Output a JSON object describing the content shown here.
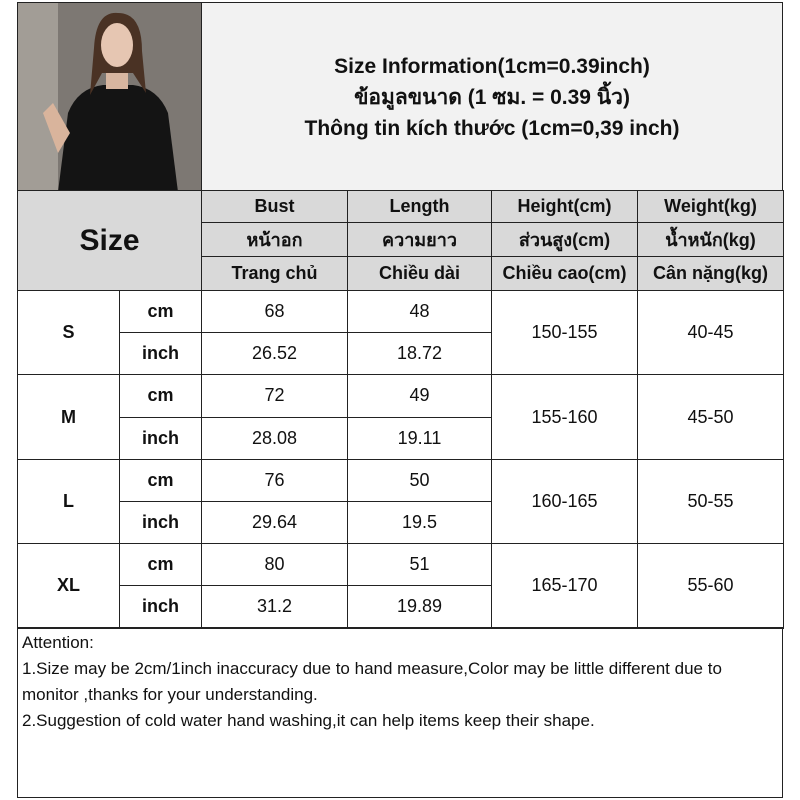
{
  "photo_alt": "model photo",
  "info": {
    "line1": "Size Information(1cm=0.39inch)",
    "line2": "ข้อมูลขนาด (1 ซม. = 0.39 นิ้ว)",
    "line3": "Thông tin kích thước (1cm=0,39 inch)"
  },
  "size_label": "Size",
  "columns": [
    {
      "en": "Bust",
      "th": "หน้าอก",
      "vi": "Trang chủ"
    },
    {
      "en": "Length",
      "th": "ความยาว",
      "vi": "Chiều dài"
    },
    {
      "en": "Height(cm)",
      "th": "ส่วนสูง(cm)",
      "vi": "Chiều cao(cm)"
    },
    {
      "en": "Weight(kg)",
      "th": "น้ำหนัก(kg)",
      "vi": "Cân nặng(kg)"
    }
  ],
  "units": {
    "cm": "cm",
    "inch": "inch"
  },
  "rows": [
    {
      "size": "S",
      "cm": [
        "68",
        "48"
      ],
      "inch": [
        "26.52",
        "18.72"
      ],
      "height": "150-155",
      "weight": "40-45"
    },
    {
      "size": "M",
      "cm": [
        "72",
        "49"
      ],
      "inch": [
        "28.08",
        "19.11"
      ],
      "height": "155-160",
      "weight": "45-50"
    },
    {
      "size": "L",
      "cm": [
        "76",
        "50"
      ],
      "inch": [
        "29.64",
        "19.5"
      ],
      "height": "160-165",
      "weight": "50-55"
    },
    {
      "size": "XL",
      "cm": [
        "80",
        "51"
      ],
      "inch": [
        "31.2",
        "19.89"
      ],
      "height": "165-170",
      "weight": "55-60"
    }
  ],
  "attention": {
    "title": "Attention:",
    "line1": "1.Size may be 2cm/1inch inaccuracy due to hand measure,Color may be little different due to monitor ,thanks for your understanding.",
    "line2": "2.Suggestion of cold water hand washing,it can help items keep their shape."
  }
}
